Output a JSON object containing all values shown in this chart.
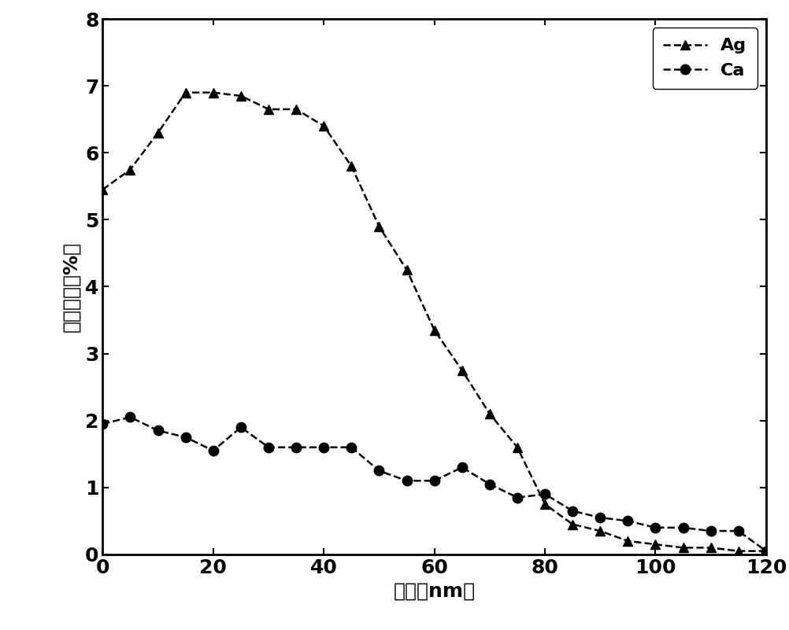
{
  "ag_x": [
    0,
    5,
    10,
    15,
    20,
    25,
    30,
    35,
    40,
    45,
    50,
    55,
    60,
    65,
    70,
    75,
    80,
    85,
    90,
    95,
    100,
    105,
    110,
    115,
    120
  ],
  "ag_y": [
    5.45,
    5.75,
    6.3,
    6.9,
    6.9,
    6.85,
    6.65,
    6.65,
    6.4,
    5.8,
    4.9,
    4.25,
    3.35,
    2.75,
    2.1,
    1.6,
    0.75,
    0.45,
    0.35,
    0.2,
    0.15,
    0.1,
    0.1,
    0.05,
    0.05
  ],
  "ca_x": [
    0,
    5,
    10,
    15,
    20,
    25,
    30,
    35,
    40,
    45,
    50,
    55,
    60,
    65,
    70,
    75,
    80,
    85,
    90,
    95,
    100,
    105,
    110,
    115,
    120
  ],
  "ca_y": [
    1.95,
    2.05,
    1.85,
    1.75,
    1.55,
    1.9,
    1.6,
    1.6,
    1.6,
    1.6,
    1.25,
    1.1,
    1.1,
    1.3,
    1.05,
    0.85,
    0.9,
    0.65,
    0.55,
    0.5,
    0.4,
    0.4,
    0.35,
    0.35,
    0.05
  ],
  "xlabel": "深度（nm）",
  "ylabel": "原子浓度（%）",
  "xlim": [
    0,
    120
  ],
  "ylim": [
    0,
    8
  ],
  "xticks": [
    0,
    20,
    40,
    60,
    80,
    100,
    120
  ],
  "yticks": [
    0,
    1,
    2,
    3,
    4,
    5,
    6,
    7,
    8
  ],
  "line_color": "#000000",
  "marker_ag": "^",
  "marker_ca": "o",
  "marker_size_ag": 9,
  "marker_size_ca": 9,
  "line_style": "--",
  "line_width": 1.8,
  "legend_ag": "Ag",
  "legend_ca": "Ca",
  "label_fontsize": 18,
  "tick_fontsize": 18,
  "legend_fontsize": 16,
  "figure_width": 10.03,
  "figure_height": 8.01,
  "dpi": 100
}
